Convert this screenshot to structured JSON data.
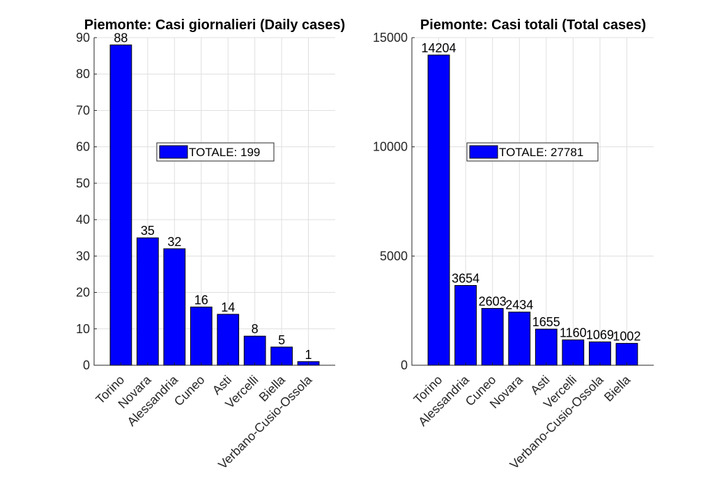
{
  "chart_data": [
    {
      "type": "bar",
      "title": "Piemonte: Casi giornalieri (Daily cases)",
      "categories": [
        "Torino",
        "Novara",
        "Alessandria",
        "Cuneo",
        "Asti",
        "Vercelli",
        "Biella",
        "Verbano-Cusio-Ossola"
      ],
      "values": [
        88,
        35,
        32,
        16,
        14,
        8,
        5,
        1
      ],
      "data_labels": [
        "88",
        "35",
        "32",
        "16",
        "14",
        "8",
        "5",
        "1"
      ],
      "ylim": [
        0,
        90
      ],
      "yticks": [
        0,
        10,
        20,
        30,
        40,
        50,
        60,
        70,
        80,
        90
      ],
      "ytick_labels": [
        "0",
        "10",
        "20",
        "30",
        "40",
        "50",
        "60",
        "70",
        "80",
        "90"
      ],
      "legend": "TOTALE: 199",
      "legend_position": "center-right",
      "grid": true,
      "bar_color": "#0000ff"
    },
    {
      "type": "bar",
      "title": "Piemonte: Casi totali (Total cases)",
      "categories": [
        "Torino",
        "Alessandria",
        "Cuneo",
        "Novara",
        "Asti",
        "Vercelli",
        "Verbano-Cusio-Ossola",
        "Biella"
      ],
      "values": [
        14204,
        3654,
        2603,
        2434,
        1655,
        1160,
        1069,
        1002
      ],
      "data_labels": [
        "14204",
        "3654",
        "2603",
        "2434",
        "1655",
        "1160",
        "1069",
        "1002"
      ],
      "ylim": [
        0,
        15000
      ],
      "yticks": [
        0,
        5000,
        10000,
        15000
      ],
      "ytick_labels": [
        "0",
        "5000",
        "10000",
        "15000"
      ],
      "legend": "TOTALE: 27781",
      "legend_position": "center-right",
      "grid": true,
      "bar_color": "#0000ff"
    }
  ]
}
